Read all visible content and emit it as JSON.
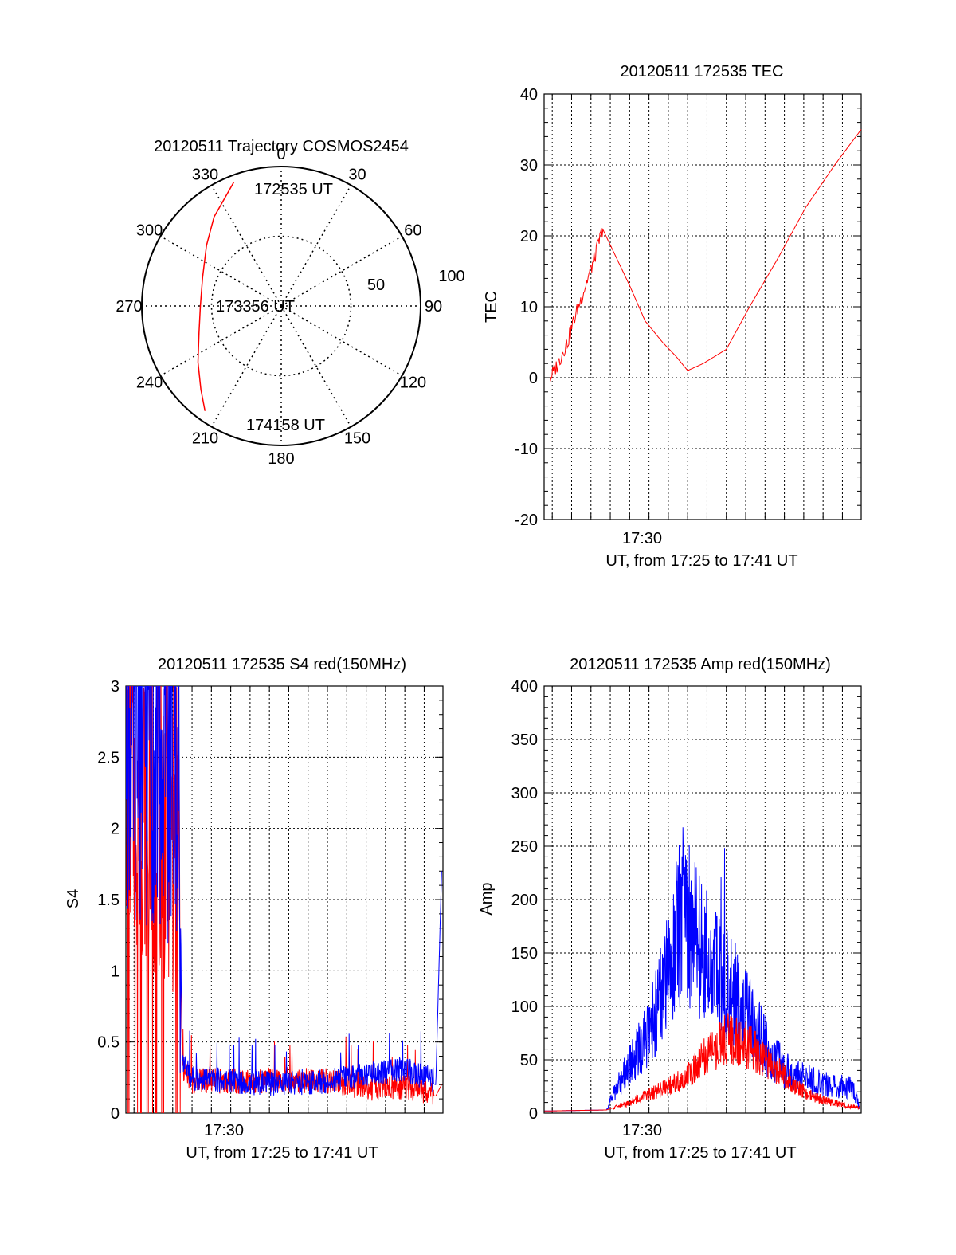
{
  "colors": {
    "red": "#ff0000",
    "blue": "#0000ff",
    "axis": "#000000",
    "grid": "#000000"
  },
  "chart_data": [
    {
      "id": "trajectory",
      "type": "polar",
      "title": "20120511 Trajectory COSMOS2454",
      "angle_labels": [
        {
          "deg": 0,
          "text": "0"
        },
        {
          "deg": 30,
          "text": "30"
        },
        {
          "deg": 60,
          "text": "60"
        },
        {
          "deg": 90,
          "text": "90"
        },
        {
          "deg": 120,
          "text": "120"
        },
        {
          "deg": 150,
          "text": "150"
        },
        {
          "deg": 180,
          "text": "180"
        },
        {
          "deg": 210,
          "text": "210"
        },
        {
          "deg": 240,
          "text": "240"
        },
        {
          "deg": 270,
          "text": "270"
        },
        {
          "deg": 300,
          "text": "300"
        },
        {
          "deg": 330,
          "text": "330"
        }
      ],
      "radial_labels": [
        {
          "r": 50,
          "text": "50"
        },
        {
          "r": 100,
          "text": "100"
        }
      ],
      "r_max": 100,
      "track": [
        {
          "az": 339,
          "r": 95
        },
        {
          "az": 323,
          "r": 80
        },
        {
          "az": 309,
          "r": 69
        },
        {
          "az": 290,
          "r": 60
        },
        {
          "az": 270,
          "r": 58
        },
        {
          "az": 252,
          "r": 62
        },
        {
          "az": 236,
          "r": 72
        },
        {
          "az": 224,
          "r": 83
        },
        {
          "az": 216,
          "r": 93
        }
      ],
      "time_labels": [
        "172535 UT",
        "173356 UT",
        "174158 UT"
      ]
    },
    {
      "id": "tec",
      "type": "line",
      "title": "20120511 172535 TEC",
      "ylabel": "TEC",
      "xlabel": "UT, from 17:25 to 17:41 UT",
      "xtick_label": "17:30",
      "xlim_min": [
        25.58,
        41.97
      ],
      "ylim": [
        -20,
        40
      ],
      "yticks": [
        -20,
        -10,
        0,
        10,
        20,
        30,
        40
      ],
      "series": [
        {
          "color": "red",
          "x": [
            25.9,
            26.3,
            26.6,
            26.8,
            27.1,
            27.6,
            28.2,
            28.6,
            29.3,
            30.0,
            30.8,
            31.7,
            32.4,
            33.0,
            33.8,
            35.0,
            36.2,
            37.7,
            39.1,
            40.6,
            41.97
          ],
          "y": [
            0,
            2,
            4,
            5,
            8,
            12,
            17,
            21,
            17,
            13,
            8,
            5,
            3,
            1,
            2,
            4,
            10,
            17,
            24,
            30,
            35
          ]
        }
      ]
    },
    {
      "id": "s4",
      "type": "line",
      "title": "20120511 172535 S4 red(150MHz)",
      "ylabel": "S4",
      "xlabel": "UT, from 17:25 to 17:41 UT",
      "xtick_label": "17:30",
      "xlim_min": [
        25.58,
        41.97
      ],
      "ylim": [
        0,
        3
      ],
      "yticks": [
        0,
        0.5,
        1,
        1.5,
        2,
        2.5,
        3
      ],
      "series": [
        {
          "color": "red",
          "x": [
            25.6,
            28.3,
            28.5,
            29.0,
            33.0,
            36.0,
            38.0,
            40.0,
            41.6,
            41.9
          ],
          "y": [
            2.4,
            2.0,
            0.3,
            0.2,
            0.2,
            0.2,
            0.15,
            0.15,
            0.12,
            0.2
          ]
        },
        {
          "color": "blue",
          "x": [
            25.6,
            28.3,
            28.5,
            29.0,
            33.0,
            36.0,
            38.0,
            40.0,
            41.6,
            41.9
          ],
          "y": [
            2.6,
            2.3,
            0.35,
            0.22,
            0.18,
            0.2,
            0.25,
            0.28,
            0.2,
            1.7
          ]
        }
      ]
    },
    {
      "id": "amp",
      "type": "line",
      "title": "20120511 172535 Amp red(150MHz)",
      "ylabel": "Amp",
      "xlabel": "UT, from 17:25 to 17:41 UT",
      "xtick_label": "17:30",
      "xlim_min": [
        25.58,
        41.97
      ],
      "ylim": [
        0,
        400
      ],
      "yticks": [
        0,
        50,
        100,
        150,
        200,
        250,
        300,
        350,
        400
      ],
      "series": [
        {
          "color": "red",
          "x": [
            25.6,
            28.8,
            30.0,
            31.0,
            32.0,
            33.0,
            34.0,
            35.0,
            36.0,
            37.0,
            38.0,
            39.0,
            40.0,
            41.0,
            41.9
          ],
          "y": [
            2,
            3,
            10,
            18,
            25,
            35,
            55,
            70,
            65,
            50,
            35,
            20,
            12,
            8,
            5
          ]
        },
        {
          "color": "blue",
          "x": [
            25.6,
            28.8,
            29.5,
            30.5,
            31.5,
            32.2,
            32.8,
            33.5,
            34.5,
            35.5,
            36.5,
            37.5,
            38.5,
            39.5,
            40.5,
            41.5,
            41.9
          ],
          "y": [
            2,
            3,
            30,
            60,
            100,
            150,
            190,
            160,
            130,
            110,
            80,
            50,
            35,
            30,
            25,
            25,
            5
          ]
        }
      ]
    }
  ]
}
